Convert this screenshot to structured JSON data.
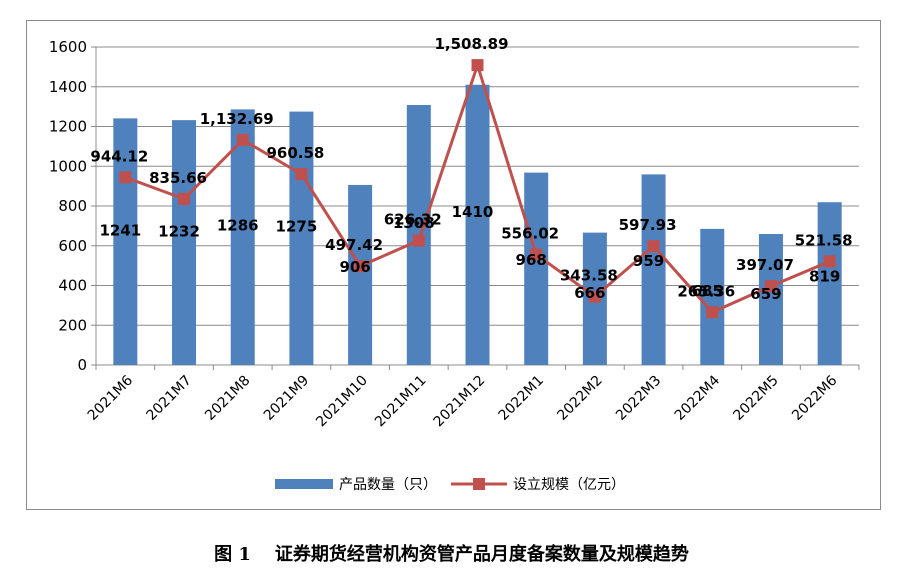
{
  "chart_data": {
    "type": "bar",
    "categories": [
      "2021M6",
      "2021M7",
      "2021M8",
      "2021M9",
      "2021M10",
      "2021M11",
      "2021M12",
      "2022M1",
      "2022M2",
      "2022M3",
      "2022M4",
      "2022M5",
      "2022M6"
    ],
    "series": [
      {
        "name": "产品数量（只）",
        "type": "bar",
        "axis": "left",
        "color": "#4f81bd",
        "values": [
          1241,
          1232,
          1286,
          1275,
          906,
          1308,
          1410,
          968,
          666,
          959,
          685,
          659,
          819
        ],
        "labels": [
          "1241",
          "1232",
          "1286",
          "1275",
          "906",
          "1308",
          "1410",
          "968",
          "666",
          "959",
          "685",
          "659",
          "819"
        ]
      },
      {
        "name": "设立规模（亿元）",
        "type": "line",
        "axis": "left",
        "color": "#c0504d",
        "marker": "square",
        "values": [
          944.12,
          835.66,
          1132.69,
          960.58,
          497.42,
          626.32,
          1508.89,
          556.02,
          343.58,
          597.93,
          265.36,
          397.07,
          521.58
        ],
        "labels": [
          "944.12",
          "835.66",
          "1,132.69",
          "960.58",
          "497.42",
          "626.32",
          "1,508.89",
          "556.02",
          "343.58",
          "597.93",
          "265.36",
          "397.07",
          "521.58"
        ]
      }
    ],
    "ylim": [
      0,
      1600
    ],
    "yticks": [
      "0",
      "200",
      "400",
      "600",
      "800",
      "1000",
      "1200",
      "1400",
      "1600"
    ],
    "grid": true,
    "legend_position": "bottom",
    "xlabel": "",
    "ylabel": ""
  },
  "caption": {
    "figure_number": "图 1",
    "text": "证券期货经营机构资管产品月度备案数量及规模趋势"
  }
}
